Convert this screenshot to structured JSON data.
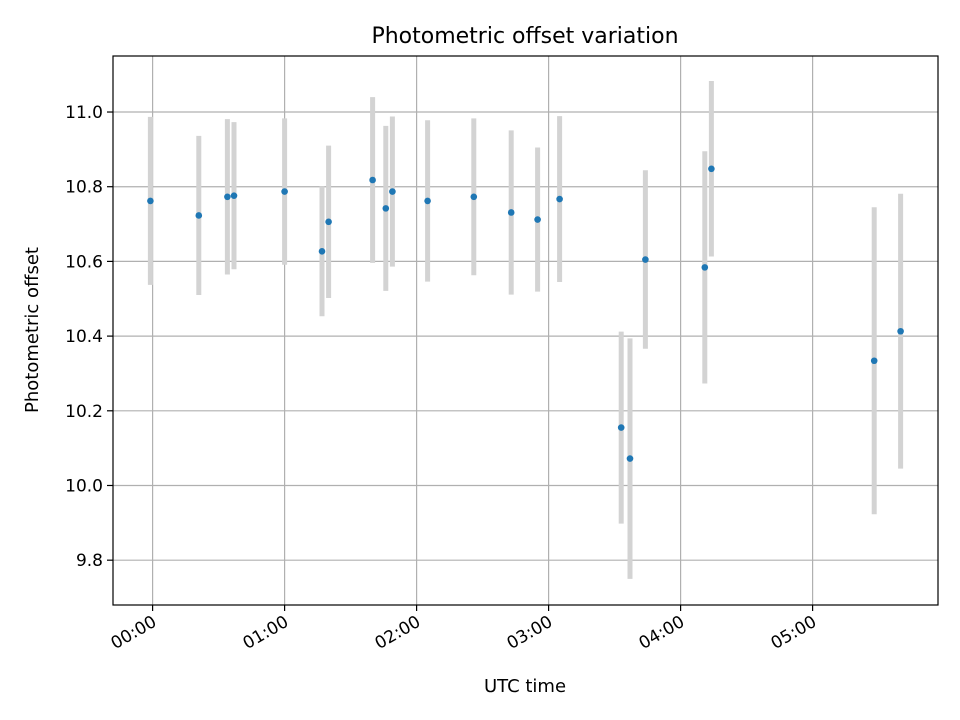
{
  "chart_data": {
    "type": "scatter",
    "title": "Photometric offset variation",
    "xlabel": "UTC time",
    "ylabel": "Photometric offset",
    "xlim": [
      "23:42",
      "05:57"
    ],
    "ylim": [
      9.68,
      11.15
    ],
    "x_ticks": [
      "00:00",
      "01:00",
      "02:00",
      "03:00",
      "04:00",
      "05:00"
    ],
    "y_ticks": [
      9.8,
      10.0,
      10.2,
      10.4,
      10.6,
      10.8,
      11.0
    ],
    "y_tick_labels": [
      "9.8",
      "10.0",
      "10.2",
      "10.4",
      "10.6",
      "10.8",
      "11.0"
    ],
    "grid": true,
    "marker_color": "#1f77b4",
    "errorbar_color": "#d3d3d3",
    "points": [
      {
        "x": "23:59",
        "y": 10.762,
        "err": 0.225
      },
      {
        "x": "00:21",
        "y": 10.723,
        "err": 0.213
      },
      {
        "x": "00:34",
        "y": 10.773,
        "err": 0.208
      },
      {
        "x": "00:37",
        "y": 10.776,
        "err": 0.197
      },
      {
        "x": "01:00",
        "y": 10.787,
        "err": 0.196
      },
      {
        "x": "01:17",
        "y": 10.627,
        "err": 0.174
      },
      {
        "x": "01:20",
        "y": 10.706,
        "err": 0.204
      },
      {
        "x": "01:40",
        "y": 10.818,
        "err": 0.222
      },
      {
        "x": "01:46",
        "y": 10.742,
        "err": 0.221
      },
      {
        "x": "01:49",
        "y": 10.787,
        "err": 0.201
      },
      {
        "x": "02:05",
        "y": 10.762,
        "err": 0.216
      },
      {
        "x": "02:26",
        "y": 10.773,
        "err": 0.21
      },
      {
        "x": "02:43",
        "y": 10.731,
        "err": 0.22
      },
      {
        "x": "02:55",
        "y": 10.712,
        "err": 0.193
      },
      {
        "x": "03:05",
        "y": 10.767,
        "err": 0.222
      },
      {
        "x": "03:33",
        "y": 10.155,
        "err": 0.257
      },
      {
        "x": "03:37",
        "y": 10.072,
        "err": 0.322
      },
      {
        "x": "03:44",
        "y": 10.605,
        "err": 0.239
      },
      {
        "x": "04:11",
        "y": 10.584,
        "err": 0.311
      },
      {
        "x": "04:14",
        "y": 10.848,
        "err": 0.235
      },
      {
        "x": "05:28",
        "y": 10.334,
        "err": 0.411
      },
      {
        "x": "05:40",
        "y": 10.413,
        "err": 0.368
      }
    ]
  }
}
